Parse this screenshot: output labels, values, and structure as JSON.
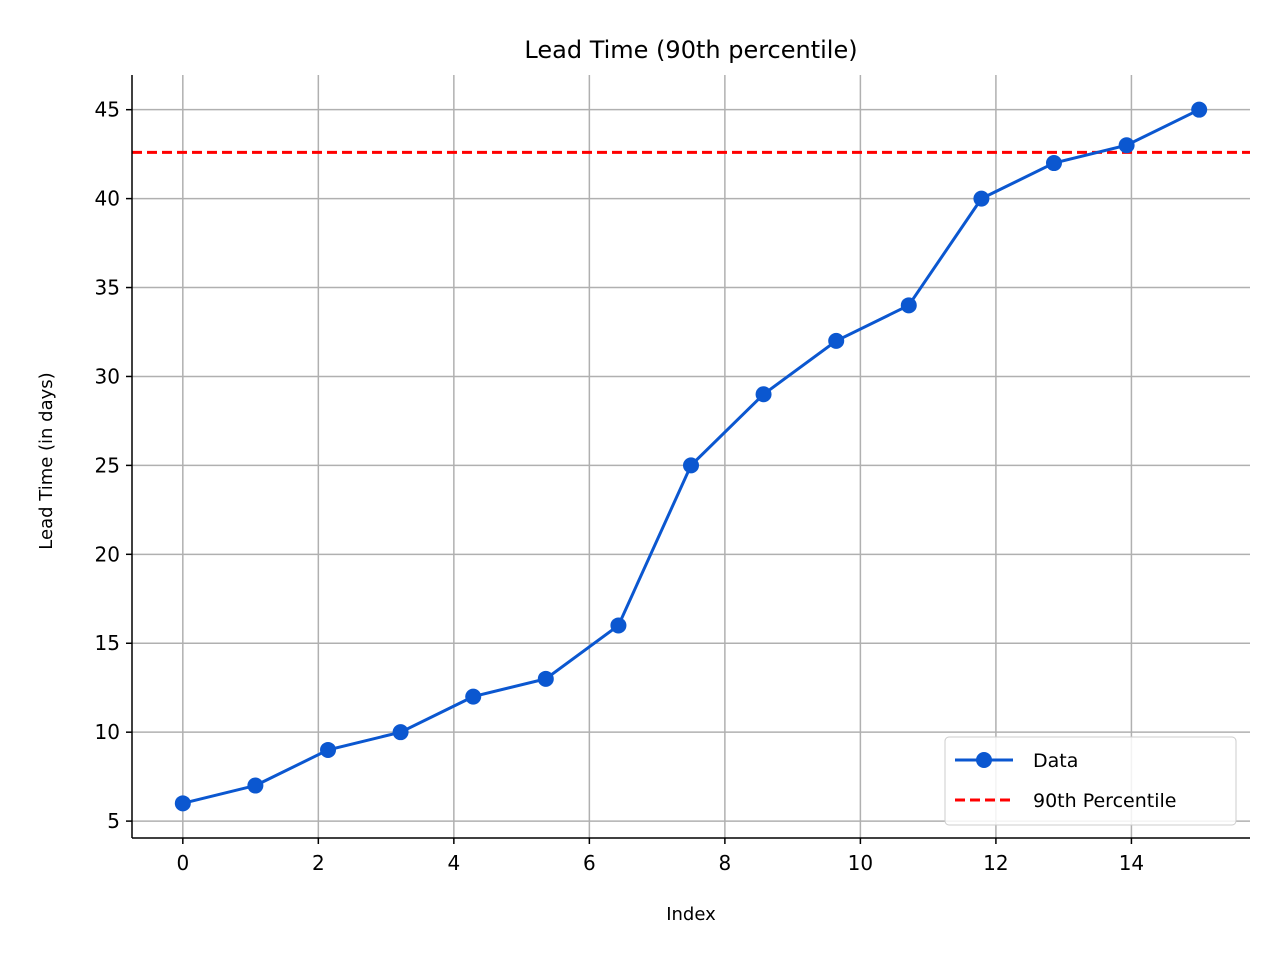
{
  "chart_data": {
    "type": "line",
    "title": "Lead Time (90th percentile)",
    "xlabel": "Index",
    "ylabel": "Lead Time (in days)",
    "xlim": [
      -0.75,
      15.75
    ],
    "ylim": [
      4.05,
      46.95
    ],
    "xticks": [
      0,
      2,
      4,
      6,
      8,
      10,
      12,
      14
    ],
    "yticks": [
      5,
      10,
      15,
      20,
      25,
      30,
      35,
      40,
      45
    ],
    "grid": true,
    "legend_position": "bottom-right",
    "series": [
      {
        "name": "Data",
        "color": "#0b57d0",
        "marker": "circle",
        "x": [
          0,
          1.071,
          2.143,
          3.214,
          4.286,
          5.357,
          6.429,
          7.5,
          8.571,
          9.643,
          10.714,
          11.786,
          12.857,
          13.929,
          15
        ],
        "y": [
          6,
          7,
          9,
          10,
          12,
          13,
          16,
          25,
          29,
          32,
          34,
          40,
          42,
          43,
          45
        ]
      }
    ],
    "reference_lines": [
      {
        "name": "90th Percentile",
        "y": 42.6,
        "color": "#ff0000",
        "style": "dashed"
      }
    ]
  }
}
